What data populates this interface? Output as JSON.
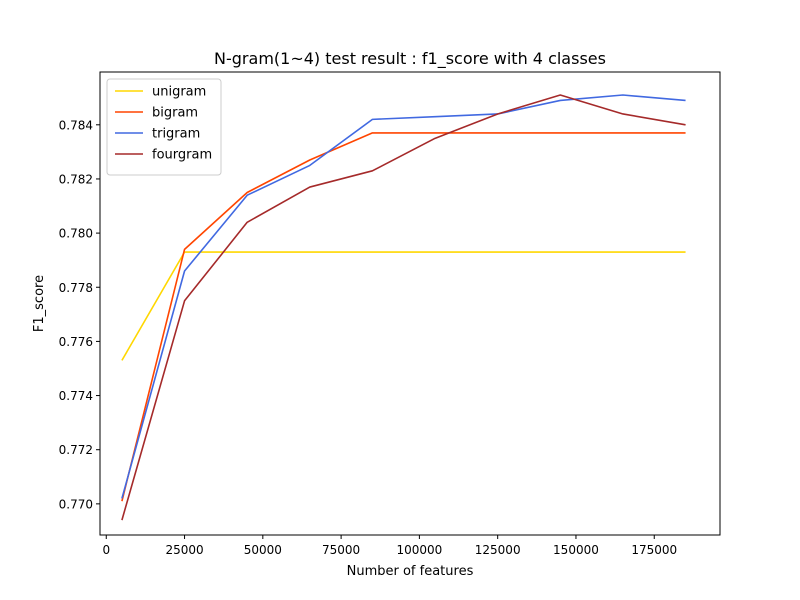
{
  "chart_data": {
    "type": "line",
    "title": "N-gram(1~4) test result : f1_score with 4 classes",
    "xlabel": "Number of features",
    "ylabel": "F1_score",
    "x": [
      5000,
      25000,
      45000,
      65000,
      85000,
      105000,
      125000,
      145000,
      165000,
      185000
    ],
    "xlim": [
      -2000,
      196000
    ],
    "ylim": [
      0.76885,
      0.78595
    ],
    "xticks": [
      0,
      25000,
      50000,
      75000,
      100000,
      125000,
      150000,
      175000
    ],
    "yticks": [
      0.77,
      0.772,
      0.774,
      0.776,
      0.778,
      0.78,
      0.782,
      0.784
    ],
    "ytick_labels": [
      "0.770",
      "0.772",
      "0.774",
      "0.776",
      "0.778",
      "0.780",
      "0.782",
      "0.784"
    ],
    "grid": false,
    "legend_position": "upper-left",
    "series": [
      {
        "name": "unigram",
        "color": "#FFD700",
        "values": [
          0.7753,
          0.7793,
          0.7793,
          0.7793,
          0.7793,
          0.7793,
          0.7793,
          0.7793,
          0.7793,
          0.7793
        ]
      },
      {
        "name": "bigram",
        "color": "#FF4500",
        "values": [
          0.7701,
          0.7794,
          0.7815,
          0.7827,
          0.7837,
          0.7837,
          0.7837,
          0.7837,
          0.7837,
          0.7837
        ]
      },
      {
        "name": "trigram",
        "color": "#4169E1",
        "values": [
          0.7702,
          0.7786,
          0.7814,
          0.7825,
          0.7842,
          0.7843,
          0.7844,
          0.7849,
          0.7851,
          0.7849
        ]
      },
      {
        "name": "fourgram",
        "color": "#A52A2A",
        "values": [
          0.7694,
          0.7775,
          0.7804,
          0.7817,
          0.7823,
          0.7835,
          0.7844,
          0.7851,
          0.7844,
          0.784
        ]
      }
    ]
  }
}
